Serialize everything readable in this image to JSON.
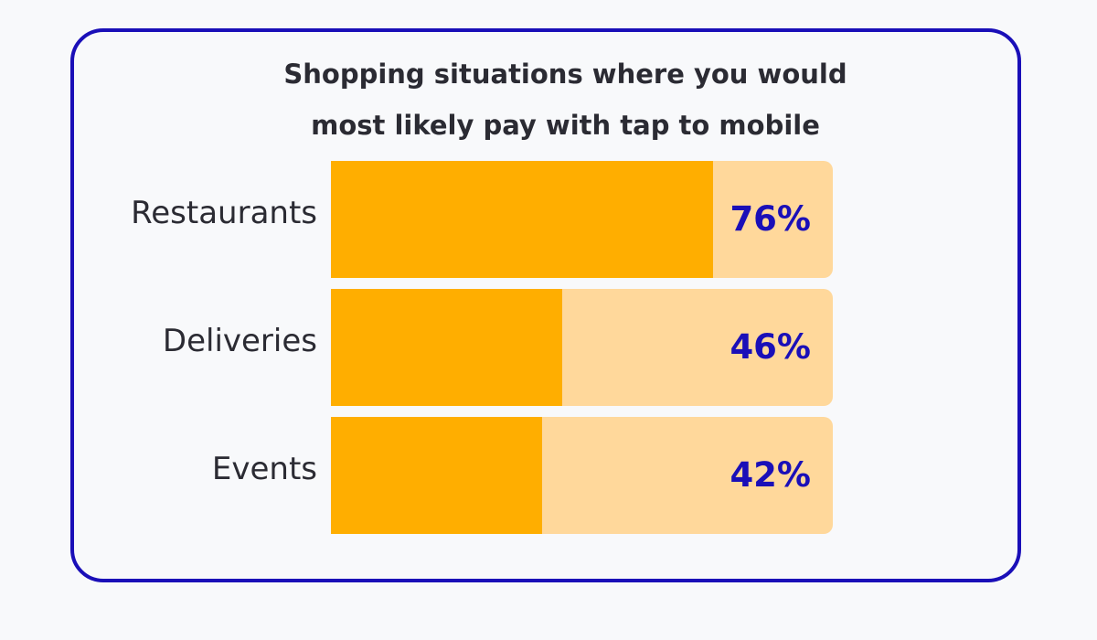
{
  "chart_data": {
    "type": "bar",
    "orientation": "horizontal",
    "title_lines": [
      "Shopping situations where you would",
      "most likely pay with tap to mobile"
    ],
    "categories": [
      "Restaurants",
      "Deliveries",
      "Events"
    ],
    "values": [
      76,
      46,
      42
    ],
    "value_labels": [
      "76%",
      "46%",
      "42%"
    ],
    "xlim": [
      0,
      100
    ],
    "grid": false,
    "legend": "none",
    "colors": {
      "bar_fill": "#ffae00",
      "bar_track": "#ffd89b",
      "value_text": "#1a0fb8",
      "frame_border": "#1a0fb8"
    }
  }
}
